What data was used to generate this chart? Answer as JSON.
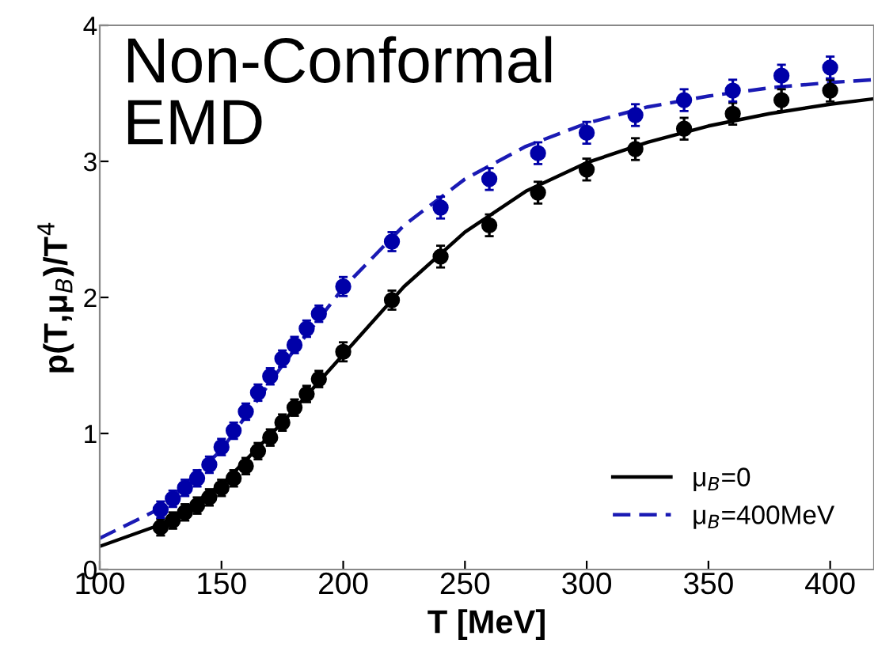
{
  "chart_data": {
    "type": "line",
    "xlabel": "T [MeV]",
    "ylabel": "p(T,μ$_{B}$)/T$^{4}$",
    "annotations": [
      "Non-Conformal\nEMD"
    ],
    "xlim": [
      100,
      418
    ],
    "ylim": [
      0,
      4
    ],
    "xticks": [
      100,
      150,
      200,
      250,
      300,
      350,
      400
    ],
    "yticks": [
      0,
      1,
      2,
      3,
      4
    ],
    "grid": false,
    "legend": "bottom right",
    "series": [
      {
        "name": "μ$_{B}$=0",
        "type": "line",
        "color": "#000000",
        "line_style": "solid",
        "x": [
          100,
          125,
          150,
          175,
          200,
          225,
          250,
          275,
          300,
          325,
          350,
          375,
          400,
          418
        ],
        "values": [
          0.17,
          0.33,
          0.62,
          1.08,
          1.58,
          2.08,
          2.48,
          2.78,
          2.99,
          3.14,
          3.26,
          3.35,
          3.42,
          3.46
        ]
      },
      {
        "name": "μ$_{B}$=400MeV",
        "type": "line",
        "color": "#1a1ab4",
        "line_style": "dashed",
        "x": [
          100,
          125,
          150,
          175,
          200,
          225,
          250,
          275,
          300,
          325,
          350,
          375,
          400,
          418
        ],
        "values": [
          0.23,
          0.45,
          0.88,
          1.5,
          2.07,
          2.53,
          2.87,
          3.11,
          3.28,
          3.4,
          3.48,
          3.54,
          3.58,
          3.6
        ]
      },
      {
        "type": "scatter",
        "marker": "circle",
        "color": "#000000",
        "x": [
          125,
          130,
          135,
          140,
          145,
          150,
          155,
          160,
          165,
          170,
          175,
          180,
          185,
          190,
          200,
          220,
          240,
          260,
          280,
          300,
          320,
          340,
          360,
          380,
          400
        ],
        "values": [
          0.31,
          0.36,
          0.42,
          0.47,
          0.53,
          0.6,
          0.67,
          0.76,
          0.87,
          0.97,
          1.08,
          1.19,
          1.29,
          1.4,
          1.6,
          1.98,
          2.3,
          2.53,
          2.77,
          2.94,
          3.09,
          3.24,
          3.35,
          3.45,
          3.52
        ],
        "errors": [
          0.06,
          0.06,
          0.06,
          0.06,
          0.06,
          0.06,
          0.06,
          0.06,
          0.06,
          0.06,
          0.06,
          0.06,
          0.06,
          0.06,
          0.07,
          0.07,
          0.08,
          0.08,
          0.08,
          0.08,
          0.08,
          0.08,
          0.08,
          0.08,
          0.08
        ]
      },
      {
        "type": "scatter",
        "marker": "circle",
        "color": "#0000a8",
        "x": [
          125,
          130,
          135,
          140,
          145,
          150,
          155,
          160,
          165,
          170,
          175,
          180,
          185,
          190,
          200,
          220,
          240,
          260,
          280,
          300,
          320,
          340,
          360,
          380,
          400
        ],
        "values": [
          0.44,
          0.52,
          0.6,
          0.67,
          0.77,
          0.9,
          1.02,
          1.16,
          1.3,
          1.42,
          1.55,
          1.65,
          1.77,
          1.88,
          2.08,
          2.41,
          2.66,
          2.87,
          3.06,
          3.21,
          3.34,
          3.45,
          3.52,
          3.63,
          3.69
        ],
        "errors": [
          0.06,
          0.06,
          0.06,
          0.06,
          0.06,
          0.06,
          0.06,
          0.06,
          0.06,
          0.06,
          0.06,
          0.06,
          0.06,
          0.06,
          0.07,
          0.07,
          0.08,
          0.08,
          0.08,
          0.08,
          0.08,
          0.08,
          0.08,
          0.08,
          0.08
        ]
      }
    ]
  }
}
